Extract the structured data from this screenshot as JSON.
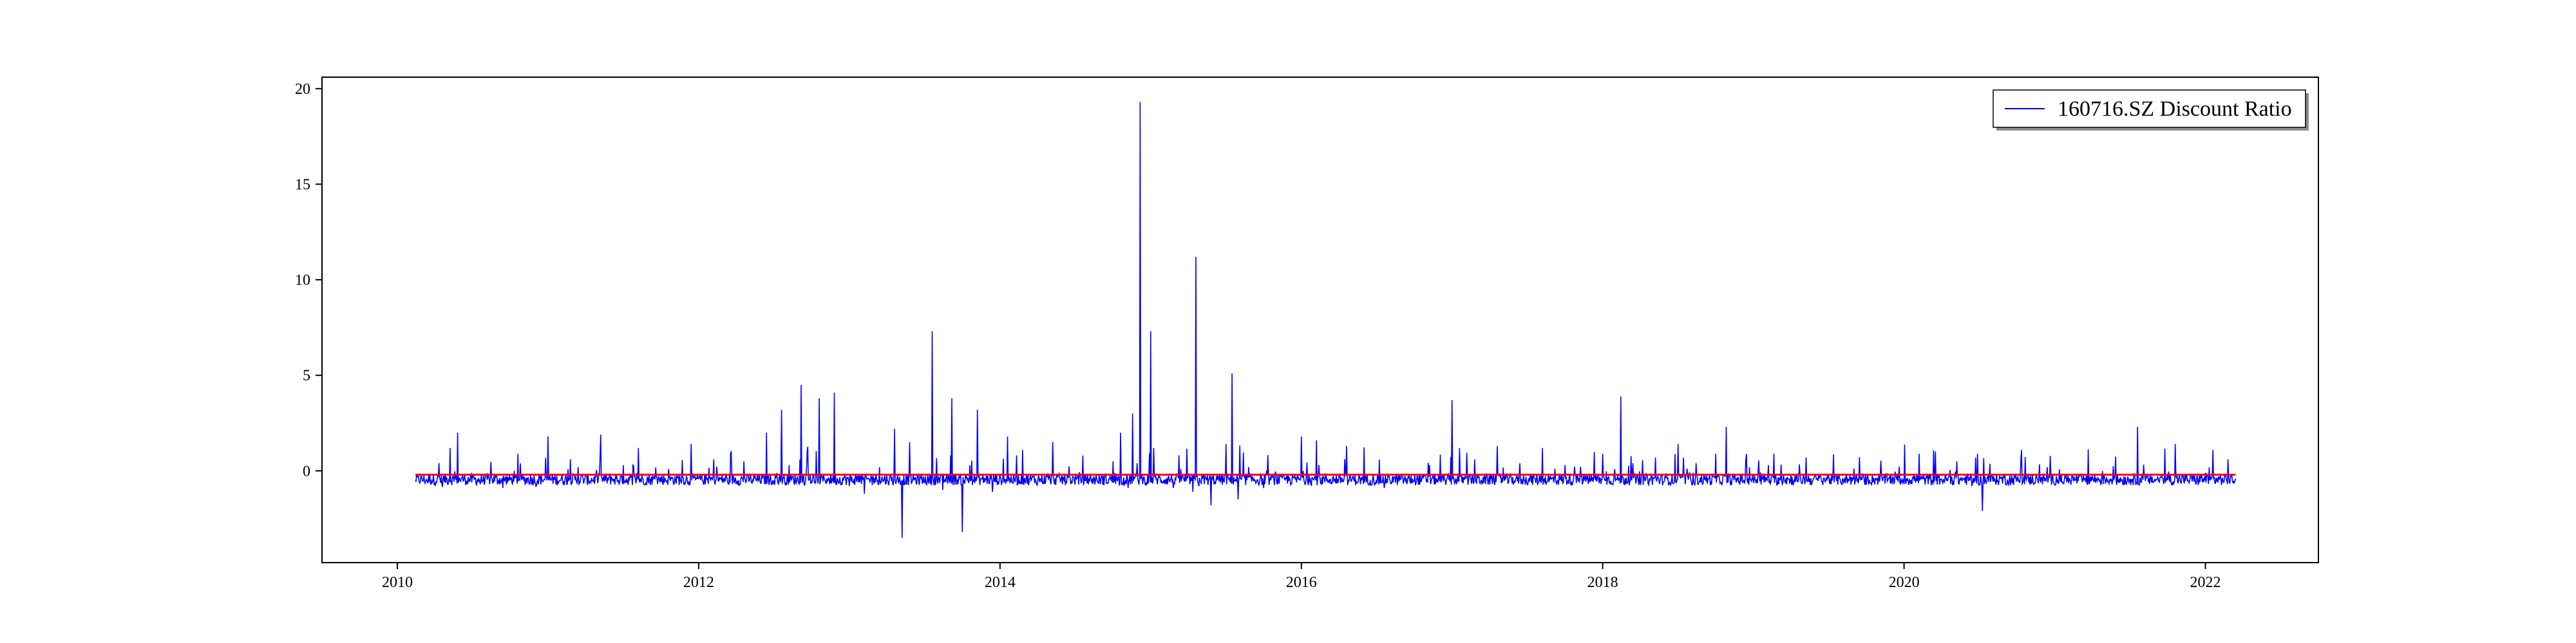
{
  "chart_data": {
    "type": "line",
    "title": "",
    "xlabel": "",
    "ylabel": "",
    "xlim": [
      2009.5,
      2022.75
    ],
    "ylim": [
      -4.8,
      20.6
    ],
    "x_ticks": [
      2010,
      2012,
      2014,
      2016,
      2018,
      2020,
      2022
    ],
    "x_tick_labels": [
      "2010",
      "2012",
      "2014",
      "2016",
      "2018",
      "2020",
      "2022"
    ],
    "y_ticks": [
      0,
      5,
      10,
      15,
      20
    ],
    "y_tick_labels": [
      "0",
      "5",
      "10",
      "15",
      "20"
    ],
    "grid": false,
    "legend": {
      "placement": "top-right",
      "entries": [
        "160716.SZ Discount Ratio"
      ]
    },
    "series": [
      {
        "name": "160716.SZ Discount Ratio",
        "color": "#0000ff",
        "x": [
          2010.12,
          2010.2,
          2010.3,
          2010.35,
          2010.4,
          2010.45,
          2010.55,
          2010.7,
          2010.8,
          2010.92,
          2011.0,
          2011.05,
          2011.2,
          2011.35,
          2011.42,
          2011.5,
          2011.6,
          2011.65,
          2011.8,
          2011.95,
          2012.0,
          2012.1,
          2012.2,
          2012.3,
          2012.35,
          2012.45,
          2012.5,
          2012.55,
          2012.6,
          2012.68,
          2012.72,
          2012.8,
          2012.85,
          2012.9,
          2013.0,
          2013.1,
          2013.2,
          2013.3,
          2013.35,
          2013.4,
          2013.5,
          2013.55,
          2013.62,
          2013.68,
          2013.75,
          2013.8,
          2013.85,
          2013.95,
          2014.05,
          2014.15,
          2014.25,
          2014.35,
          2014.45,
          2014.55,
          2014.65,
          2014.75,
          2014.8,
          2014.85,
          2014.88,
          2014.91,
          2014.93,
          2014.96,
          2015.0,
          2015.02,
          2015.08,
          2015.15,
          2015.2,
          2015.28,
          2015.3,
          2015.32,
          2015.4,
          2015.45,
          2015.5,
          2015.54,
          2015.58,
          2015.65,
          2015.75,
          2015.9,
          2016.0,
          2016.05,
          2016.1,
          2016.2,
          2016.3,
          2016.4,
          2016.55,
          2016.7,
          2016.85,
          2016.95,
          2017.0,
          2017.05,
          2017.15,
          2017.3,
          2017.45,
          2017.6,
          2017.75,
          2017.9,
          2018.0,
          2018.08,
          2018.12,
          2018.2,
          2018.35,
          2018.5,
          2018.6,
          2018.75,
          2018.82,
          2018.95,
          2019.1,
          2019.2,
          2019.35,
          2019.5,
          2019.7,
          2019.85,
          2020.0,
          2020.1,
          2020.2,
          2020.35,
          2020.45,
          2020.52,
          2020.55,
          2020.65,
          2020.8,
          2020.95,
          2021.1,
          2021.25,
          2021.4,
          2021.5,
          2021.55,
          2021.65,
          2021.8,
          2021.9,
          2022.0,
          2022.05,
          2022.12,
          2022.15,
          2022.2
        ],
        "y": [
          -0.5,
          -0.6,
          -0.8,
          1.2,
          2.0,
          -0.4,
          -0.7,
          -0.9,
          0.9,
          -0.8,
          1.8,
          -0.5,
          0.2,
          1.9,
          -0.3,
          0.3,
          1.2,
          -0.6,
          0.1,
          1.4,
          -0.4,
          0.6,
          -0.7,
          0.5,
          -0.6,
          2.0,
          -0.5,
          3.2,
          0.3,
          4.5,
          1.0,
          3.8,
          -0.4,
          4.1,
          -0.8,
          -1.2,
          0.2,
          2.2,
          -3.5,
          1.5,
          -0.6,
          7.3,
          -1.0,
          3.8,
          -3.2,
          0.3,
          3.2,
          -1.1,
          1.8,
          1.1,
          -0.6,
          1.5,
          -0.3,
          0.8,
          -0.6,
          0.5,
          2.0,
          -0.9,
          3.0,
          0.4,
          19.3,
          -0.5,
          7.3,
          1.2,
          -0.6,
          -0.9,
          0.1,
          -1.1,
          11.2,
          -0.8,
          -1.8,
          -0.4,
          1.4,
          5.1,
          -1.5,
          0.2,
          -0.9,
          -0.4,
          1.8,
          -0.2,
          1.6,
          -0.6,
          1.3,
          -0.5,
          -0.9,
          -0.7,
          0.3,
          -0.4,
          3.7,
          1.2,
          0.6,
          1.3,
          0.4,
          1.2,
          0.3,
          -0.2,
          0.9,
          0.1,
          3.9,
          0.4,
          0.7,
          1.4,
          -0.1,
          0.9,
          2.3,
          0.6,
          0.3,
          -0.2,
          0.7,
          -0.3,
          -0.4,
          -0.1,
          -0.7,
          0.9,
          -0.6,
          0.5,
          -0.8,
          -2.1,
          -0.5,
          -0.3,
          -0.7,
          0.2,
          -0.5,
          -0.3,
          -0.2,
          -0.4,
          2.3,
          -0.6,
          1.4,
          -0.3,
          -0.1,
          1.1,
          -0.6,
          0.6,
          -0.4
        ],
        "noise_amplitude": 0.6
      }
    ],
    "reference_line": {
      "y": -0.2,
      "x_range": [
        2010.12,
        2022.2
      ],
      "color": "#ff0000"
    },
    "colors": {
      "series": "#0000ff",
      "reference": "#ff0000",
      "axes": "#000000"
    }
  }
}
